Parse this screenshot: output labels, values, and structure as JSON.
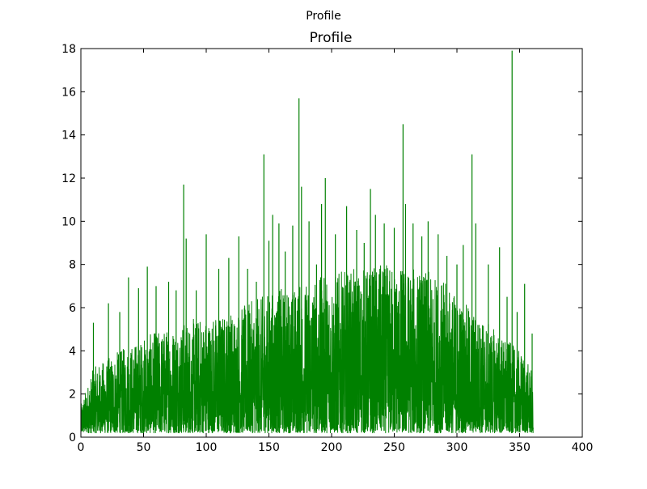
{
  "figure": {
    "suptitle": "Profile"
  },
  "chart_data": {
    "type": "line",
    "title": "Profile",
    "xlabel": "",
    "ylabel": "",
    "xlim": [
      0,
      400
    ],
    "ylim": [
      0,
      18
    ],
    "grid": false,
    "legend": "none",
    "x_ticks": [
      0,
      50,
      100,
      150,
      200,
      250,
      300,
      350,
      400
    ],
    "y_ticks": [
      0,
      2,
      4,
      6,
      8,
      10,
      12,
      14,
      16,
      18
    ],
    "x_tick_labels": [
      "0",
      "50",
      "100",
      "150",
      "200",
      "250",
      "300",
      "350",
      "400"
    ],
    "y_tick_labels": [
      "0",
      "2",
      "4",
      "6",
      "8",
      "10",
      "12",
      "14",
      "16",
      "18"
    ],
    "series": [
      {
        "name": "profile",
        "color": "#008000",
        "x_range": [
          0,
          361
        ],
        "upper_envelope": {
          "x": [
            0,
            10,
            20,
            30,
            40,
            50,
            60,
            70,
            80,
            90,
            100,
            110,
            120,
            130,
            140,
            150,
            160,
            170,
            180,
            190,
            200,
            210,
            220,
            230,
            240,
            250,
            260,
            270,
            280,
            290,
            300,
            310,
            320,
            330,
            340,
            350,
            355,
            360,
            361
          ],
          "y": [
            1.5,
            3.2,
            3.6,
            4.0,
            4.3,
            4.6,
            4.9,
            5.1,
            5.3,
            5.5,
            5.6,
            5.7,
            5.9,
            6.1,
            6.4,
            6.7,
            6.9,
            7.0,
            7.2,
            7.4,
            7.6,
            7.7,
            7.8,
            7.9,
            8.0,
            8.0,
            7.9,
            7.8,
            7.6,
            7.2,
            6.6,
            6.0,
            5.5,
            5.0,
            4.5,
            4.0,
            3.6,
            3.0,
            1.5
          ]
        },
        "spikes": [
          {
            "x": 10,
            "y": 5.3
          },
          {
            "x": 22,
            "y": 6.2
          },
          {
            "x": 31,
            "y": 5.8
          },
          {
            "x": 38,
            "y": 7.4
          },
          {
            "x": 46,
            "y": 6.9
          },
          {
            "x": 53,
            "y": 7.9
          },
          {
            "x": 60,
            "y": 7.0
          },
          {
            "x": 70,
            "y": 7.2
          },
          {
            "x": 76,
            "y": 6.8
          },
          {
            "x": 82,
            "y": 11.7
          },
          {
            "x": 84,
            "y": 9.2
          },
          {
            "x": 92,
            "y": 6.8
          },
          {
            "x": 100,
            "y": 9.4
          },
          {
            "x": 110,
            "y": 7.8
          },
          {
            "x": 118,
            "y": 8.3
          },
          {
            "x": 126,
            "y": 9.3
          },
          {
            "x": 133,
            "y": 7.8
          },
          {
            "x": 140,
            "y": 7.2
          },
          {
            "x": 146,
            "y": 13.1
          },
          {
            "x": 150,
            "y": 9.1
          },
          {
            "x": 153,
            "y": 10.3
          },
          {
            "x": 158,
            "y": 9.9
          },
          {
            "x": 163,
            "y": 8.6
          },
          {
            "x": 169,
            "y": 9.8
          },
          {
            "x": 174,
            "y": 15.7
          },
          {
            "x": 176,
            "y": 11.6
          },
          {
            "x": 182,
            "y": 10.0
          },
          {
            "x": 188,
            "y": 8.0
          },
          {
            "x": 192,
            "y": 10.8
          },
          {
            "x": 195,
            "y": 12.0
          },
          {
            "x": 203,
            "y": 9.4
          },
          {
            "x": 212,
            "y": 10.7
          },
          {
            "x": 220,
            "y": 9.6
          },
          {
            "x": 226,
            "y": 9.0
          },
          {
            "x": 231,
            "y": 11.5
          },
          {
            "x": 235,
            "y": 10.3
          },
          {
            "x": 242,
            "y": 9.9
          },
          {
            "x": 250,
            "y": 9.7
          },
          {
            "x": 257,
            "y": 14.5
          },
          {
            "x": 259,
            "y": 10.8
          },
          {
            "x": 265,
            "y": 9.9
          },
          {
            "x": 272,
            "y": 9.3
          },
          {
            "x": 277,
            "y": 10.0
          },
          {
            "x": 285,
            "y": 9.4
          },
          {
            "x": 292,
            "y": 8.4
          },
          {
            "x": 300,
            "y": 8.0
          },
          {
            "x": 305,
            "y": 8.9
          },
          {
            "x": 312,
            "y": 13.1
          },
          {
            "x": 315,
            "y": 9.9
          },
          {
            "x": 325,
            "y": 8.0
          },
          {
            "x": 334,
            "y": 8.8
          },
          {
            "x": 340,
            "y": 6.5
          },
          {
            "x": 344,
            "y": 17.9
          },
          {
            "x": 348,
            "y": 5.8
          },
          {
            "x": 354,
            "y": 7.1
          },
          {
            "x": 360,
            "y": 4.8
          }
        ]
      }
    ]
  }
}
